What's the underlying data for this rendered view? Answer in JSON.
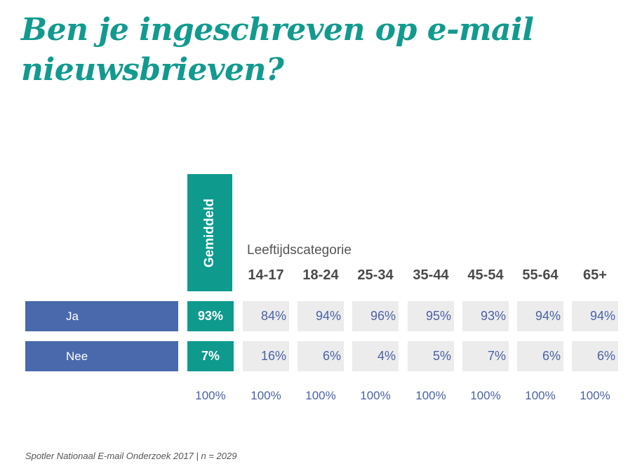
{
  "title": "Ben je ingeschreven op e-mail nieuwsbrieven?",
  "source": "Spotler Nationaal E-mail Onderzoek 2017 | n = 2029",
  "chart_data": {
    "type": "table",
    "title": "Ben je ingeschreven op e-mail nieuwsbrieven?",
    "average_label": "Gemiddeld",
    "group_label": "Leeftijdscategorie",
    "columns": [
      "14-17",
      "18-24",
      "25-34",
      "35-44",
      "45-54",
      "55-64",
      "65+"
    ],
    "rows": [
      {
        "label": "Ja",
        "average": "93%",
        "values": [
          "84%",
          "94%",
          "96%",
          "95%",
          "93%",
          "94%",
          "94%"
        ]
      },
      {
        "label": "Nee",
        "average": "7%",
        "values": [
          "16%",
          "6%",
          "4%",
          "5%",
          "7%",
          "6%",
          "6%"
        ]
      }
    ],
    "totals": {
      "average": "100%",
      "values": [
        "100%",
        "100%",
        "100%",
        "100%",
        "100%",
        "100%",
        "100%"
      ]
    }
  },
  "colors": {
    "teal": "#0e9a8d",
    "blue": "#4a69ad",
    "cell_bg": "#ececec"
  }
}
